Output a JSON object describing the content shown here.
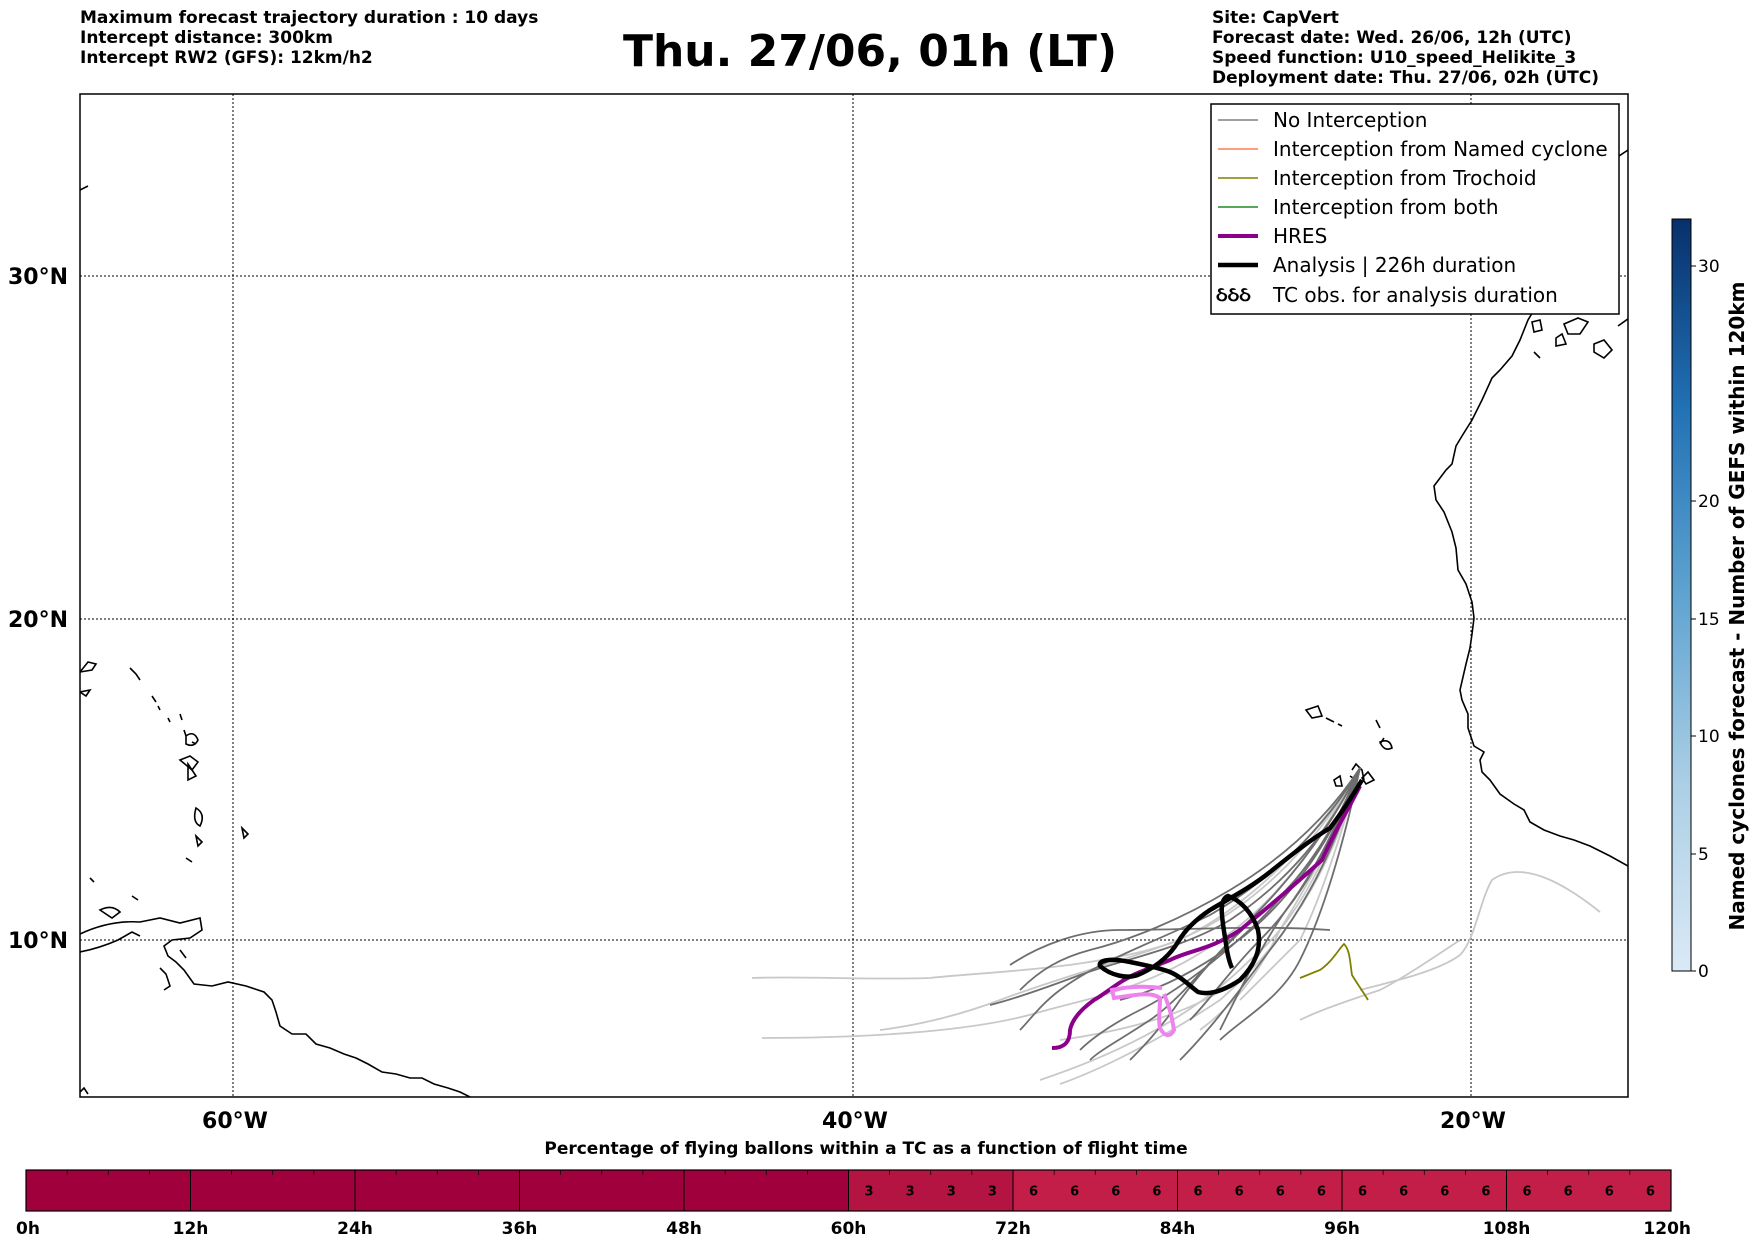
{
  "header": {
    "left_lines": [
      "Maximum forecast trajectory duration : 10 days",
      "Intercept distance: 300km",
      "Intercept RW2 (GFS):  12km/h2"
    ],
    "title": "Thu. 27/06, 01h (LT)",
    "right_lines": [
      "Site: CapVert",
      "Forecast date: Wed. 26/06, 12h (UTC)",
      "Speed function: U10_speed_Helikite_3",
      "Deployment date: Thu. 27/06, 02h (UTC)"
    ]
  },
  "map": {
    "lat_labels": [
      "30°N",
      "20°N",
      "10°N"
    ],
    "lon_labels": [
      "60°W",
      "40°W",
      "20°W"
    ],
    "legend": [
      {
        "label": "No Interception",
        "color": "#808080",
        "kind": "line"
      },
      {
        "label": "Interception from Named cyclone",
        "color": "#ff7f50",
        "kind": "line"
      },
      {
        "label": "Interception from Trochoid",
        "color": "#808000",
        "kind": "line"
      },
      {
        "label": "Interception from both",
        "color": "#228b22",
        "kind": "line"
      },
      {
        "label": "HRES",
        "color": "#8b008b",
        "kind": "thick"
      },
      {
        "label": "Analysis | 226h duration",
        "color": "#000000",
        "kind": "thick"
      },
      {
        "label": "TC obs. for analysis duration",
        "color": "#000000",
        "kind": "tc-symbol"
      }
    ]
  },
  "colorbar": {
    "label": "Named cyclones forecast - Number of GEFS within 120km",
    "ticks": [
      "0",
      "5",
      "10",
      "15",
      "20",
      "30"
    ]
  },
  "flight_bar": {
    "title": "Percentage of flying ballons within a TC as a function of flight time",
    "ticks": [
      "0h",
      "12h",
      "24h",
      "36h",
      "48h",
      "60h",
      "72h",
      "84h",
      "96h",
      "108h",
      "120h"
    ],
    "values": [
      0,
      0,
      0,
      0,
      0,
      0,
      0,
      0,
      0,
      0,
      0,
      0,
      0,
      0,
      0,
      0,
      0,
      0,
      0,
      0,
      3,
      3,
      3,
      3,
      6,
      6,
      6,
      6,
      6,
      6,
      6,
      6,
      6,
      6,
      6,
      6,
      6,
      6,
      6,
      6
    ],
    "color_zero": "#a0003c",
    "color_3": "#b41441",
    "color_6": "#c31e48"
  }
}
